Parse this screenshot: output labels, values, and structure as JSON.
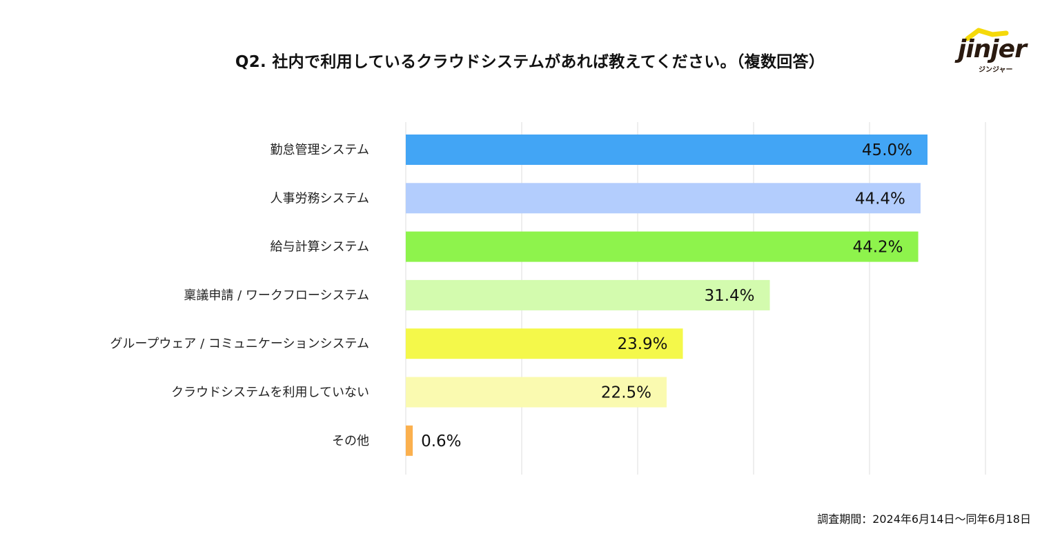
{
  "title": "Q2. 社内で利用しているクラウドシステムがあれば教えてください。（複数回答）",
  "logo": {
    "word": "jinjer",
    "sub": "ジンジャー",
    "roof_color": "#f5d90a",
    "text_color": "#2a1a10"
  },
  "footnote": "調査期間：2024年6月14日〜同年6月18日",
  "chart_data": {
    "type": "bar",
    "orientation": "horizontal",
    "title": "Q2. 社内で利用しているクラウドシステムがあれば教えてください。（複数回答）",
    "xlabel": "",
    "ylabel": "",
    "xlim": [
      0,
      50
    ],
    "grid": true,
    "gridlines": [
      0,
      10,
      20,
      30,
      40,
      50
    ],
    "categories": [
      "勤怠管理システム",
      "人事労務システム",
      "給与計算システム",
      "稟議申請 / ワークフローシステム",
      "グループウェア / コミュニケーションシステム",
      "クラウドシステムを利用していない",
      "その他"
    ],
    "values": [
      45.0,
      44.4,
      44.2,
      31.4,
      23.9,
      22.5,
      0.6
    ],
    "value_labels": [
      "45.0%",
      "44.4%",
      "44.2%",
      "31.4%",
      "23.9%",
      "22.5%",
      "0.6%"
    ],
    "colors": [
      "#42a5f5",
      "#b3cdfd",
      "#8ef34c",
      "#d3fbae",
      "#f4f84a",
      "#fafab0",
      "#fbb04e"
    ]
  }
}
